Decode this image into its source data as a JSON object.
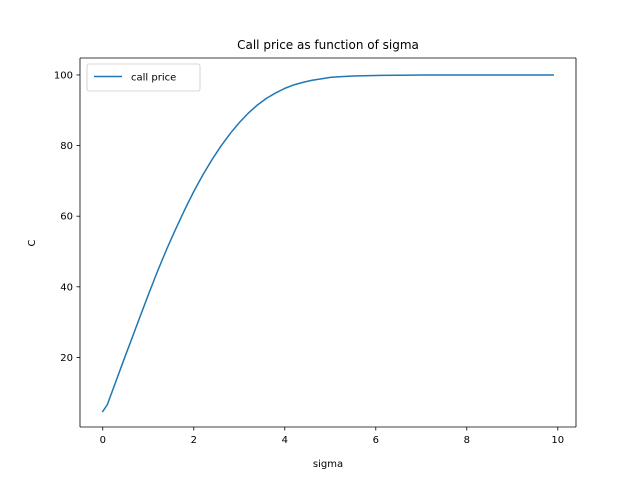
{
  "chart_data": {
    "type": "line",
    "title": "Call price as function of sigma",
    "xlabel": "sigma",
    "ylabel": "C",
    "xlim": [
      -0.5,
      10.4
    ],
    "ylim": [
      0.3,
      104.8
    ],
    "xticks": [
      0,
      2,
      4,
      6,
      8,
      10
    ],
    "yticks": [
      20,
      40,
      60,
      80,
      100
    ],
    "grid": false,
    "legend_position": "top-left",
    "series": [
      {
        "name": "call price",
        "color": "#1f77b4",
        "x": [
          0.0,
          0.1,
          0.2,
          0.3,
          0.4,
          0.5,
          0.6,
          0.8,
          1.0,
          1.2,
          1.4,
          1.6,
          1.8,
          2.0,
          2.2,
          2.4,
          2.6,
          2.8,
          3.0,
          3.2,
          3.4,
          3.6,
          3.8,
          4.0,
          4.2,
          4.4,
          4.6,
          4.8,
          5.0,
          5.2,
          5.5,
          6.0,
          6.5,
          7.0,
          7.5,
          8.0,
          8.5,
          9.0,
          9.5,
          9.9
        ],
        "y": [
          4.7,
          6.6,
          10.1,
          13.6,
          17.1,
          20.6,
          24.0,
          30.9,
          37.7,
          44.3,
          50.5,
          56.3,
          61.8,
          67.0,
          71.7,
          76.0,
          79.9,
          83.4,
          86.5,
          89.2,
          91.5,
          93.4,
          94.9,
          96.2,
          97.2,
          97.9,
          98.5,
          98.9,
          99.3,
          99.5,
          99.7,
          99.85,
          99.93,
          99.97,
          99.99,
          100.0,
          100.0,
          100.0,
          100.0,
          100.0
        ]
      }
    ]
  }
}
